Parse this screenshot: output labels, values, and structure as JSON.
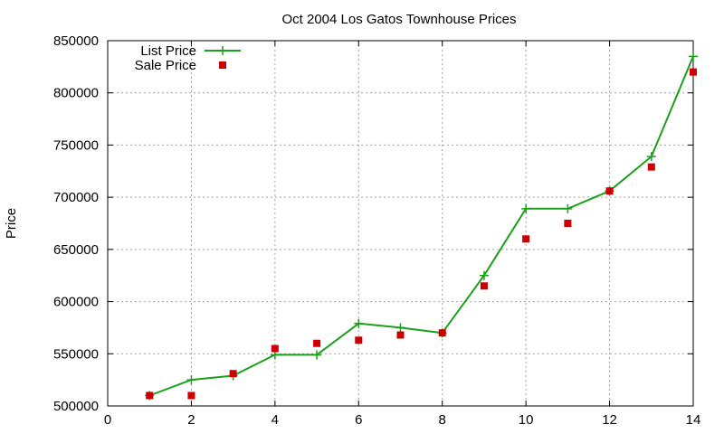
{
  "chart_data": {
    "type": "line",
    "title": "Oct 2004 Los Gatos Townhouse Prices",
    "xlabel": "",
    "ylabel": "Price",
    "xlim": [
      0,
      14
    ],
    "ylim": [
      500000,
      850000
    ],
    "x_ticks": [
      "0",
      "2",
      "4",
      "6",
      "8",
      "10",
      "12",
      "14"
    ],
    "y_ticks": [
      "500000",
      "550000",
      "600000",
      "650000",
      "700000",
      "750000",
      "800000",
      "850000"
    ],
    "grid": true,
    "legend_position": "top-left",
    "series": [
      {
        "name": "List Price",
        "style": "line-points",
        "marker": "plus",
        "color": "#1aa01a",
        "x": [
          1,
          2,
          3,
          4,
          5,
          6,
          7,
          8,
          9,
          10,
          11,
          12,
          13,
          14
        ],
        "y": [
          510000,
          525000,
          529000,
          549000,
          549000,
          579000,
          575000,
          570000,
          625000,
          689000,
          689000,
          706000,
          739000,
          835000
        ]
      },
      {
        "name": "Sale Price",
        "style": "points",
        "marker": "square",
        "color": "#cc0000",
        "x": [
          1,
          2,
          3,
          4,
          5,
          6,
          7,
          8,
          9,
          10,
          11,
          12,
          13,
          14
        ],
        "y": [
          510000,
          510000,
          531000,
          555000,
          560000,
          563000,
          568000,
          570000,
          615000,
          660000,
          675000,
          706000,
          729000,
          820000
        ]
      }
    ]
  }
}
